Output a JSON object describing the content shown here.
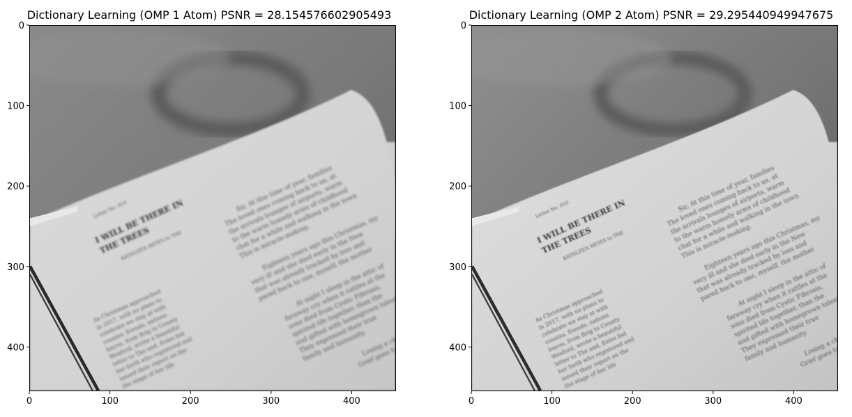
{
  "chart_data": [
    {
      "type": "image",
      "title": "Dictionary Learning (OMP 1 Atom) PSNR = 28.154576602905493",
      "xlabel": "",
      "ylabel": "",
      "xlim": [
        0,
        455
      ],
      "ylim": [
        455,
        0
      ],
      "x_ticks": [
        0,
        100,
        200,
        300,
        400
      ],
      "y_ticks": [
        0,
        100,
        200,
        300,
        400
      ],
      "colormap": "gray",
      "noise": "low"
    },
    {
      "type": "image",
      "title": "Dictionary Learning (OMP 2 Atom) PSNR = 29.295440949947675",
      "xlabel": "",
      "ylabel": "",
      "xlim": [
        0,
        455
      ],
      "ylim": [
        455,
        0
      ],
      "x_ticks": [
        0,
        100,
        200,
        300,
        400
      ],
      "y_ticks": [
        0,
        100,
        200,
        300,
        400
      ],
      "colormap": "gray",
      "noise": "high"
    }
  ],
  "image_text": {
    "heading_line1": "I WILL BE THERE IN",
    "heading_line2": "THE TREES",
    "letter_no": "Letter No. 019",
    "author": "KATHLEEN REYES to THE",
    "right_lines": [
      "Sir,   At this time of year, families",
      "The loved ones coming back to us, at",
      "the arrivals lounges of airports, warm",
      "to the warm homely arms of childhood",
      "chat for a while and walking in the town",
      "This is miracle-making.",
      "Eighteen years ago this Christmas, my",
      "very ill and she died early in the New",
      "that was already tracked by loss and",
      "pared back to one, myself, the mother",
      "At night I sleep in the attic of",
      "faraway cry when it rattles at the",
      "sons died from Cystic Fibrosis,",
      "spirited life together, than the",
      "and gifted with homegrown talent.",
      "They expressed their true",
      "family and humanity.",
      "Losing a child is",
      "Grief goes to the"
    ],
    "left_lines": [
      "As Christmas approached",
      "in 2017, with no plans to",
      "celebrate we stay at with",
      "cousins, friends, nations",
      "bayou, from Brig to County",
      "Wexford, wrote a beautiful",
      "letter to The and, Eeles fed",
      "her forth who registered and",
      "issued their report on the",
      "the stage of her life"
    ]
  }
}
